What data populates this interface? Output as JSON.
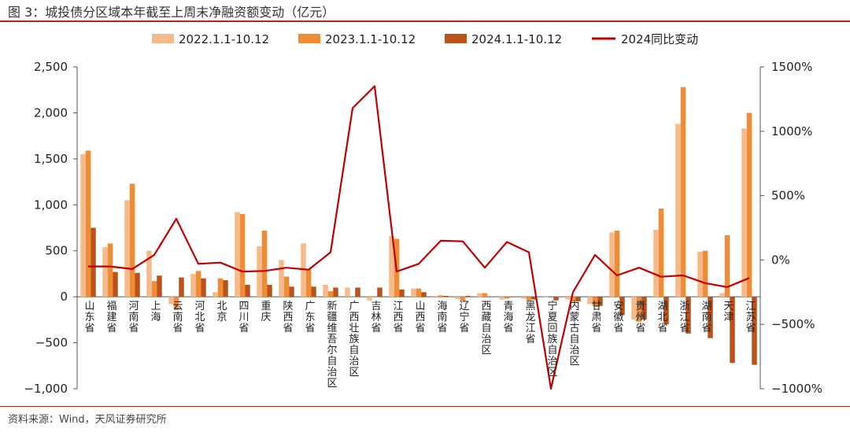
{
  "header": {
    "title": "图 3：城投债分区域本年截至上周末净融资额变动（亿元）"
  },
  "footer": {
    "source": "资料来源：Wind，天风证券研究所"
  },
  "colors": {
    "frame": "#b3281a",
    "series_2022": "#f5bb8c",
    "series_2023": "#ef8c35",
    "series_2024": "#bb5319",
    "line": "#c00000"
  },
  "chart_data": {
    "type": "bar",
    "categories": [
      "山东省",
      "福建省",
      "河南省",
      "上海",
      "云南省",
      "河北省",
      "北京",
      "四川省",
      "重庆",
      "陕西省",
      "广东省",
      "新疆维吾尔自治区",
      "广西壮族自治区",
      "吉林省",
      "江西省",
      "山西省",
      "海南省",
      "辽宁省",
      "西藏自治区",
      "青海省",
      "黑龙江省",
      "宁夏回族自治区",
      "内蒙古自治区",
      "甘肃省",
      "安徽省",
      "贵州省",
      "湖北省",
      "浙江省",
      "湖南省",
      "天津",
      "江苏省"
    ],
    "series": [
      {
        "name": "2022.1.1-10.12",
        "type": "bar",
        "axis": "left",
        "values": [
          1550,
          540,
          1050,
          500,
          -80,
          250,
          50,
          920,
          550,
          400,
          580,
          130,
          100,
          -40,
          660,
          90,
          -10,
          -25,
          40,
          -30,
          -20,
          0,
          -30,
          -80,
          700,
          -250,
          730,
          1880,
          490,
          40,
          1830
        ]
      },
      {
        "name": "2023.1.1-10.12",
        "type": "bar",
        "axis": "left",
        "values": [
          1590,
          580,
          1230,
          170,
          -140,
          280,
          200,
          900,
          720,
          220,
          300,
          60,
          -5,
          -5,
          630,
          90,
          15,
          -45,
          40,
          -20,
          -40,
          -10,
          -50,
          -100,
          720,
          -270,
          960,
          2280,
          500,
          670,
          2000
        ]
      },
      {
        "name": "2024.1.1-10.12",
        "type": "bar",
        "axis": "left",
        "values": [
          750,
          270,
          260,
          230,
          210,
          200,
          180,
          130,
          130,
          110,
          110,
          100,
          100,
          100,
          80,
          50,
          10,
          10,
          0,
          0,
          -30,
          -40,
          -50,
          -100,
          -200,
          -250,
          -300,
          -400,
          -450,
          -720,
          -740
        ]
      },
      {
        "name": "2024同比变动",
        "type": "line",
        "axis": "right",
        "values": [
          -50,
          -50,
          -70,
          40,
          320,
          -30,
          -20,
          -90,
          -85,
          -60,
          -75,
          60,
          1180,
          1350,
          -90,
          -30,
          150,
          145,
          -60,
          140,
          60,
          -1000,
          -250,
          40,
          -120,
          -60,
          -130,
          -120,
          -180,
          -210,
          -140
        ]
      }
    ],
    "ylim_left": [
      -1000,
      2500
    ],
    "yticks_left": [
      "−1,000",
      "−500",
      "0",
      "500",
      "1,000",
      "1,500",
      "2,000",
      "2,500"
    ],
    "ylim_right": [
      -1000,
      1500
    ],
    "yticks_right": [
      "−1000%",
      "−500%",
      "0%",
      "500%",
      "1000%",
      "1500%"
    ],
    "legend_position": "top",
    "grid": false
  }
}
